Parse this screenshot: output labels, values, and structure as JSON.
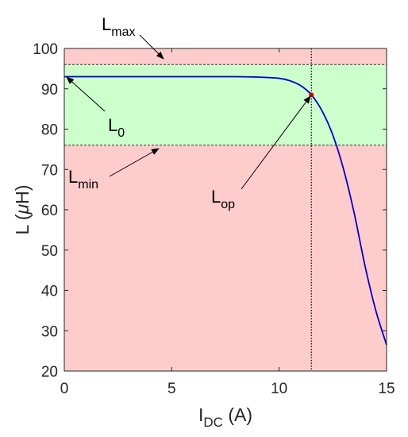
{
  "chart_data": {
    "type": "line",
    "xlabel": "I",
    "xlabel_sub": "DC",
    "xlabel_unit": " (A)",
    "ylabel": "L (",
    "ylabel_mu": "μ",
    "ylabel_unit": "H)",
    "xlim": [
      0,
      15
    ],
    "ylim": [
      20,
      100
    ],
    "xticks": [
      "0",
      "5",
      "10",
      "15"
    ],
    "yticks": [
      "20",
      "30",
      "40",
      "50",
      "60",
      "70",
      "80",
      "90",
      "100"
    ],
    "grid": false,
    "series": [
      {
        "color": "#0000cc",
        "x": [
          0,
          2,
          4,
          6,
          8,
          9,
          10,
          10.5,
          11,
          11.5,
          12,
          12.5,
          13,
          13.5,
          14,
          14.5,
          15
        ],
        "y": [
          93.0,
          93.0,
          93.0,
          93.0,
          93.0,
          92.9,
          92.6,
          92.0,
          90.8,
          88.5,
          84.5,
          78.5,
          70.0,
          59.0,
          46.0,
          35.0,
          26.5
        ]
      }
    ],
    "bands": [
      {
        "from": 20,
        "to": 76,
        "color": "#ffcccc",
        "meaning": "outside limits"
      },
      {
        "from": 76,
        "to": 96,
        "color": "#ccffcc",
        "meaning": "within limits"
      },
      {
        "from": 96,
        "to": 100,
        "color": "#ffcccc",
        "meaning": "outside limits"
      }
    ],
    "hlines": [
      {
        "y": 96,
        "style": "dashed",
        "name": "L_max"
      },
      {
        "y": 76,
        "style": "dashed",
        "name": "L_min"
      }
    ],
    "vlines": [
      {
        "x": 11.5,
        "style": "dotted"
      }
    ],
    "marker": {
      "x": 11.5,
      "y": 88.5,
      "color": "#cc0000"
    },
    "annotations": [
      {
        "main": "L",
        "sub": "max",
        "target": [
          4.5,
          96
        ]
      },
      {
        "main": "L",
        "sub": "0",
        "target": [
          0,
          93
        ]
      },
      {
        "main": "L",
        "sub": "min",
        "target": [
          4.5,
          76
        ]
      },
      {
        "main": "L",
        "sub": "op",
        "target": [
          11.5,
          88.5
        ]
      }
    ]
  }
}
